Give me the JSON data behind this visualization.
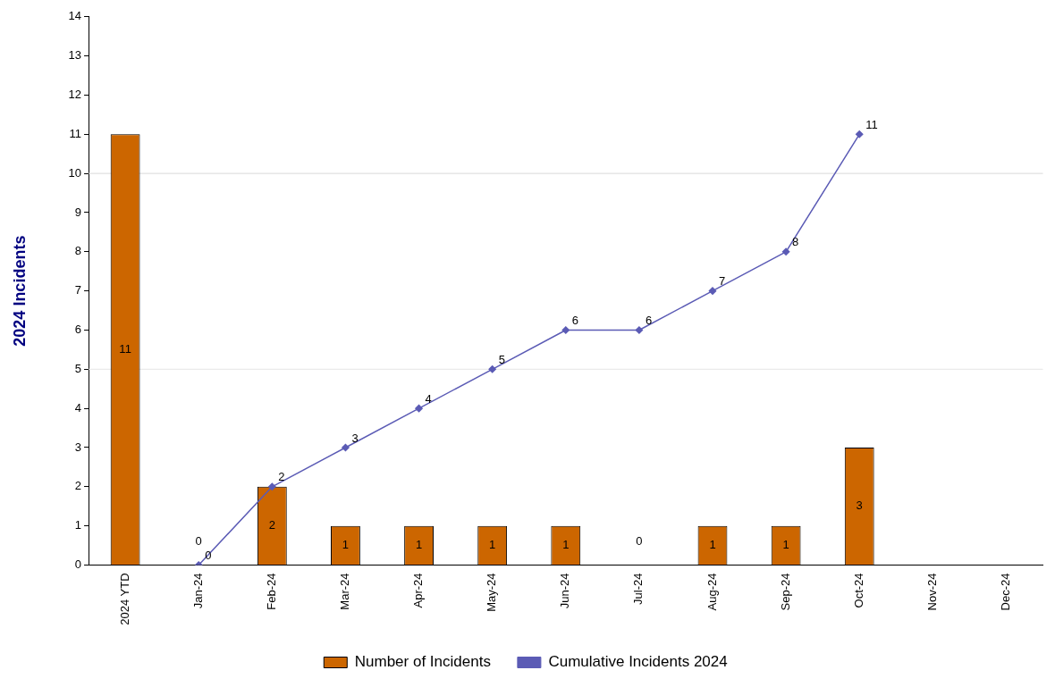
{
  "chart_data": {
    "type": "bar",
    "ylabel": "2024 Incidents",
    "categories": [
      "2024 YTD",
      "Jan-24",
      "Feb-24",
      "Mar-24",
      "Apr-24",
      "May-24",
      "Jun-24",
      "Jul-24",
      "Aug-24",
      "Sep-24",
      "Oct-24",
      "Nov-24",
      "Dec-24"
    ],
    "series": [
      {
        "name": "Number of Incidents",
        "color": "#cc6600",
        "values": [
          11,
          0,
          2,
          1,
          1,
          1,
          1,
          0,
          1,
          1,
          3,
          null,
          null
        ]
      },
      {
        "name": "Cumulative Incidents 2024",
        "type": "line",
        "color": "#5b5bb5",
        "values": [
          null,
          0,
          2,
          3,
          4,
          5,
          6,
          6,
          7,
          8,
          11,
          null,
          null
        ]
      }
    ],
    "ylim": [
      0,
      14
    ],
    "yticks": [
      0,
      1,
      2,
      3,
      4,
      5,
      6,
      7,
      8,
      9,
      10,
      11,
      12,
      13,
      14
    ],
    "ref_lines": [
      {
        "axis": "y",
        "value": 5,
        "color": "#e6e6e6"
      },
      {
        "axis": "y",
        "value": 10,
        "color": "#d9d9d9"
      }
    ],
    "grid": false,
    "legend": "bottom",
    "marker": "diamond",
    "line_style": "solid",
    "data_labels": true
  }
}
